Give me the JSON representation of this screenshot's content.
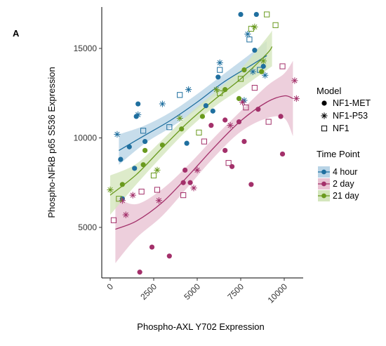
{
  "chart_data": {
    "type": "scatter",
    "panel_label": "A",
    "xlabel": "Phospho-AXL Y702 Expression",
    "ylabel": "Phospho-NFkB p65 S536 Expression",
    "xlim": [
      -500,
      11000
    ],
    "ylim": [
      2000,
      17500
    ],
    "x_ticks": [
      0,
      2500,
      5000,
      7500,
      10000
    ],
    "x_tick_labels": [
      "0",
      "2500",
      "5000",
      "7500",
      "10000"
    ],
    "y_ticks": [
      5000,
      10000,
      15000
    ],
    "y_tick_labels": [
      "5000",
      "10000",
      "15000"
    ],
    "grid": false,
    "legend_position": "right",
    "legends": {
      "model": {
        "title": "Model",
        "entries": [
          {
            "label": "NF1-MET",
            "shape": "circle"
          },
          {
            "label": "NF1-P53",
            "shape": "asterisk"
          },
          {
            "label": "NF1",
            "shape": "open-square"
          }
        ]
      },
      "time_point": {
        "title": "Time Point",
        "entries": [
          {
            "label": "4 hour",
            "color": "#1f6f9f",
            "fill": "#b9d4e6"
          },
          {
            "label": "2 day",
            "color": "#a3306a",
            "fill": "#e9c3d3"
          },
          {
            "label": "21 day",
            "color": "#6a9a1e",
            "fill": "#d4e6bd"
          }
        ]
      }
    },
    "series": [
      {
        "name": "4 hour",
        "color": "#1f6f9f",
        "points": [
          {
            "x": 600,
            "y": 8800,
            "m": "circle"
          },
          {
            "x": 1500,
            "y": 11200,
            "m": "circle"
          },
          {
            "x": 1600,
            "y": 11900,
            "m": "circle"
          },
          {
            "x": 700,
            "y": 6600,
            "m": "circle"
          },
          {
            "x": 1100,
            "y": 9500,
            "m": "circle"
          },
          {
            "x": 1400,
            "y": 8300,
            "m": "circle"
          },
          {
            "x": 2000,
            "y": 9800,
            "m": "circle"
          },
          {
            "x": 4400,
            "y": 9700,
            "m": "circle"
          },
          {
            "x": 5500,
            "y": 11800,
            "m": "circle"
          },
          {
            "x": 5900,
            "y": 11500,
            "m": "circle"
          },
          {
            "x": 6200,
            "y": 13400,
            "m": "circle"
          },
          {
            "x": 7500,
            "y": 16900,
            "m": "circle"
          },
          {
            "x": 8400,
            "y": 16900,
            "m": "circle"
          },
          {
            "x": 8300,
            "y": 14900,
            "m": "circle"
          },
          {
            "x": 8800,
            "y": 14000,
            "m": "circle"
          },
          {
            "x": 400,
            "y": 10200,
            "m": "asterisk"
          },
          {
            "x": 1600,
            "y": 11300,
            "m": "asterisk"
          },
          {
            "x": 3000,
            "y": 11900,
            "m": "asterisk"
          },
          {
            "x": 4500,
            "y": 12700,
            "m": "asterisk"
          },
          {
            "x": 6300,
            "y": 14200,
            "m": "asterisk"
          },
          {
            "x": 7900,
            "y": 15800,
            "m": "asterisk"
          },
          {
            "x": 8200,
            "y": 13700,
            "m": "asterisk"
          },
          {
            "x": 7700,
            "y": 12100,
            "m": "asterisk"
          },
          {
            "x": 8900,
            "y": 13500,
            "m": "asterisk"
          },
          {
            "x": 1900,
            "y": 10400,
            "m": "square"
          },
          {
            "x": 3400,
            "y": 10600,
            "m": "square"
          },
          {
            "x": 4000,
            "y": 12400,
            "m": "square"
          },
          {
            "x": 6300,
            "y": 13800,
            "m": "square"
          },
          {
            "x": 8000,
            "y": 15500,
            "m": "square"
          },
          {
            "x": 8600,
            "y": 13800,
            "m": "square"
          }
        ],
        "fit": [
          {
            "x": 500,
            "y": 9300,
            "lo": 8500,
            "hi": 10200
          },
          {
            "x": 2000,
            "y": 10150,
            "lo": 9700,
            "hi": 10700
          },
          {
            "x": 3500,
            "y": 11000,
            "lo": 10600,
            "hi": 11450
          },
          {
            "x": 5000,
            "y": 12000,
            "lo": 11600,
            "hi": 12450
          },
          {
            "x": 6500,
            "y": 13100,
            "lo": 12650,
            "hi": 13550
          },
          {
            "x": 8000,
            "y": 14000,
            "lo": 13400,
            "hi": 14650
          },
          {
            "x": 9000,
            "y": 14600,
            "lo": 13800,
            "hi": 15400
          }
        ]
      },
      {
        "name": "2 day",
        "color": "#a3306a",
        "points": [
          {
            "x": 1700,
            "y": 2500,
            "m": "circle"
          },
          {
            "x": 2400,
            "y": 3900,
            "m": "circle"
          },
          {
            "x": 3400,
            "y": 3400,
            "m": "circle"
          },
          {
            "x": 4200,
            "y": 7500,
            "m": "circle"
          },
          {
            "x": 4300,
            "y": 8200,
            "m": "circle"
          },
          {
            "x": 4600,
            "y": 7500,
            "m": "circle"
          },
          {
            "x": 5800,
            "y": 10700,
            "m": "circle"
          },
          {
            "x": 6600,
            "y": 11000,
            "m": "circle"
          },
          {
            "x": 6600,
            "y": 9300,
            "m": "circle"
          },
          {
            "x": 7000,
            "y": 8400,
            "m": "circle"
          },
          {
            "x": 7400,
            "y": 10900,
            "m": "circle"
          },
          {
            "x": 7700,
            "y": 9800,
            "m": "circle"
          },
          {
            "x": 8500,
            "y": 11600,
            "m": "circle"
          },
          {
            "x": 8100,
            "y": 7400,
            "m": "circle"
          },
          {
            "x": 9800,
            "y": 11200,
            "m": "circle"
          },
          {
            "x": 9900,
            "y": 9100,
            "m": "circle"
          },
          {
            "x": 700,
            "y": 6500,
            "m": "asterisk"
          },
          {
            "x": 900,
            "y": 5700,
            "m": "asterisk"
          },
          {
            "x": 1300,
            "y": 6800,
            "m": "asterisk"
          },
          {
            "x": 2800,
            "y": 6500,
            "m": "asterisk"
          },
          {
            "x": 4800,
            "y": 7200,
            "m": "asterisk"
          },
          {
            "x": 5000,
            "y": 8200,
            "m": "asterisk"
          },
          {
            "x": 6900,
            "y": 10700,
            "m": "asterisk"
          },
          {
            "x": 7600,
            "y": 12000,
            "m": "asterisk"
          },
          {
            "x": 10600,
            "y": 13200,
            "m": "asterisk"
          },
          {
            "x": 10700,
            "y": 12200,
            "m": "asterisk"
          },
          {
            "x": 200,
            "y": 5400,
            "m": "square"
          },
          {
            "x": 1800,
            "y": 7000,
            "m": "square"
          },
          {
            "x": 2700,
            "y": 7100,
            "m": "square"
          },
          {
            "x": 4200,
            "y": 6800,
            "m": "square"
          },
          {
            "x": 5400,
            "y": 9800,
            "m": "square"
          },
          {
            "x": 6800,
            "y": 8600,
            "m": "square"
          },
          {
            "x": 7800,
            "y": 11700,
            "m": "square"
          },
          {
            "x": 8300,
            "y": 12800,
            "m": "square"
          },
          {
            "x": 9100,
            "y": 10900,
            "m": "square"
          },
          {
            "x": 9900,
            "y": 14000,
            "m": "square"
          }
        ],
        "fit": [
          {
            "x": 300,
            "y": 4900,
            "lo": 3000,
            "hi": 6700
          },
          {
            "x": 1500,
            "y": 5350,
            "lo": 4400,
            "hi": 6300
          },
          {
            "x": 3000,
            "y": 6400,
            "lo": 5650,
            "hi": 7150
          },
          {
            "x": 4500,
            "y": 7900,
            "lo": 7300,
            "hi": 8500
          },
          {
            "x": 6000,
            "y": 9500,
            "lo": 8950,
            "hi": 10050
          },
          {
            "x": 7500,
            "y": 10950,
            "lo": 10350,
            "hi": 11500
          },
          {
            "x": 9000,
            "y": 12000,
            "lo": 11100,
            "hi": 12900
          },
          {
            "x": 10000,
            "y": 12350,
            "lo": 11100,
            "hi": 13600
          },
          {
            "x": 10500,
            "y": 12200,
            "lo": 10100,
            "hi": 14300
          }
        ]
      },
      {
        "name": "21 day",
        "color": "#6a9a1e",
        "points": [
          {
            "x": 700,
            "y": 7400,
            "m": "circle"
          },
          {
            "x": 1900,
            "y": 8500,
            "m": "circle"
          },
          {
            "x": 2000,
            "y": 9300,
            "m": "circle"
          },
          {
            "x": 3000,
            "y": 9600,
            "m": "circle"
          },
          {
            "x": 4100,
            "y": 10500,
            "m": "circle"
          },
          {
            "x": 5300,
            "y": 11200,
            "m": "circle"
          },
          {
            "x": 6600,
            "y": 12700,
            "m": "circle"
          },
          {
            "x": 7400,
            "y": 12200,
            "m": "circle"
          },
          {
            "x": 7700,
            "y": 13800,
            "m": "circle"
          },
          {
            "x": 8700,
            "y": 13700,
            "m": "circle"
          },
          {
            "x": 0,
            "y": 7100,
            "m": "asterisk"
          },
          {
            "x": 2700,
            "y": 8200,
            "m": "asterisk"
          },
          {
            "x": 4000,
            "y": 11100,
            "m": "asterisk"
          },
          {
            "x": 6100,
            "y": 12700,
            "m": "asterisk"
          },
          {
            "x": 8300,
            "y": 16200,
            "m": "asterisk"
          },
          {
            "x": 8800,
            "y": 14300,
            "m": "asterisk"
          },
          {
            "x": 500,
            "y": 6600,
            "m": "square"
          },
          {
            "x": 2500,
            "y": 7900,
            "m": "square"
          },
          {
            "x": 5100,
            "y": 10300,
            "m": "square"
          },
          {
            "x": 6300,
            "y": 12500,
            "m": "square"
          },
          {
            "x": 7500,
            "y": 13300,
            "m": "square"
          },
          {
            "x": 8100,
            "y": 16100,
            "m": "square"
          },
          {
            "x": 9000,
            "y": 16900,
            "m": "square"
          },
          {
            "x": 9500,
            "y": 16300,
            "m": "square"
          }
        ],
        "fit": [
          {
            "x": 0,
            "y": 6800,
            "lo": 5700,
            "hi": 7900
          },
          {
            "x": 1500,
            "y": 7950,
            "lo": 7400,
            "hi": 8550
          },
          {
            "x": 3000,
            "y": 9450,
            "lo": 9000,
            "hi": 9900
          },
          {
            "x": 4500,
            "y": 10900,
            "lo": 10500,
            "hi": 11300
          },
          {
            "x": 6000,
            "y": 12150,
            "lo": 11750,
            "hi": 12550
          },
          {
            "x": 7500,
            "y": 13300,
            "lo": 12750,
            "hi": 13850
          },
          {
            "x": 9000,
            "y": 14700,
            "lo": 13800,
            "hi": 15600
          },
          {
            "x": 9300,
            "y": 15100,
            "lo": 14000,
            "hi": 16000
          }
        ]
      }
    ]
  }
}
